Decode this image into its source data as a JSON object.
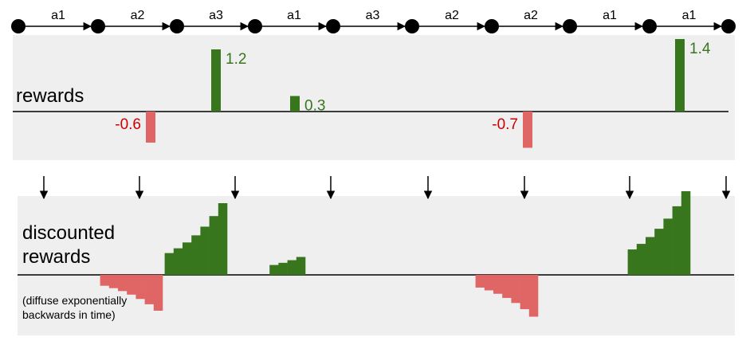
{
  "colors": {
    "panel": "#efefef",
    "node": "#000000",
    "positive": "#38761d",
    "negative": "#e06666",
    "negative_text": "#cc0000",
    "text": "#000000"
  },
  "trajectory": {
    "actions": [
      "a1",
      "a2",
      "a3",
      "a1",
      "a3",
      "a2",
      "a2",
      "a1",
      "a1"
    ]
  },
  "rewards_panel": {
    "label": "rewards",
    "rewards": [
      {
        "step": 2,
        "value": -0.6,
        "text": "-0.6"
      },
      {
        "step": 3,
        "value": 1.2,
        "text": "1.2"
      },
      {
        "step": 4,
        "value": 0.3,
        "text": "0.3"
      },
      {
        "step": 7,
        "value": -0.7,
        "text": "-0.7"
      },
      {
        "step": 9,
        "value": 1.4,
        "text": "1.4"
      }
    ]
  },
  "discounted_panel": {
    "label_line1": "discounted",
    "label_line2": "rewards",
    "note_line1": "(diffuse exponentially",
    "note_line2": "backwards in time)"
  }
}
